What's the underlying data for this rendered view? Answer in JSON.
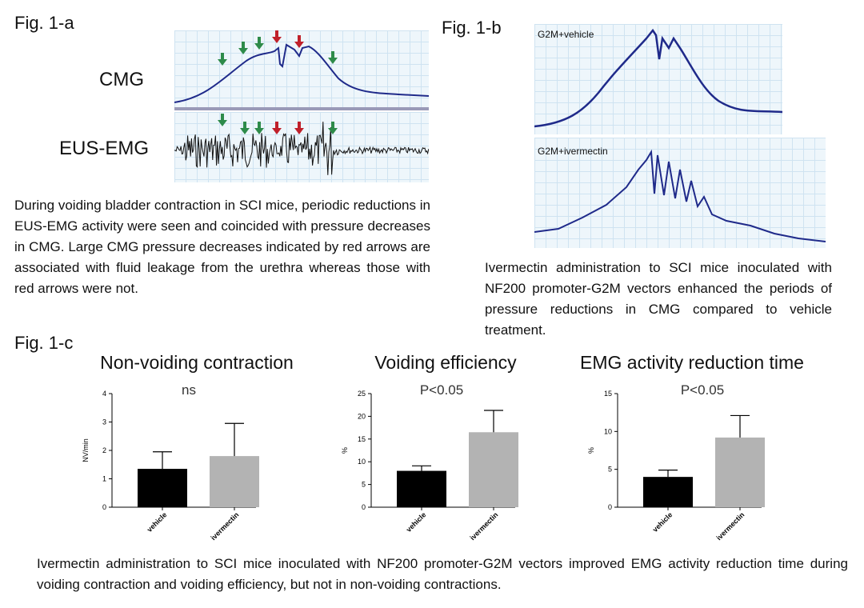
{
  "fig1a": {
    "label": "Fig. 1-a",
    "cmg_label": "CMG",
    "emg_label": "EUS-EMG",
    "caption": "During voiding bladder contraction in SCI mice, periodic reductions in EUS-EMG activity were seen and coincided with pressure decreases in CMG. Large CMG pressure decreases indicated by red arrows are associated with fluid leakage from the urethra whereas those with red arrows were not.",
    "arrow_colors": {
      "leak": "#c0202a",
      "no_leak": "#2e8b4a"
    }
  },
  "fig1b": {
    "label": "Fig. 1-b",
    "top_label": "G2M+vehicle",
    "bottom_label": "G2M+ivermectin",
    "caption": "Ivermectin administration to SCI mice inoculated with NF200 promoter-G2M vectors enhanced the periods of pressure reductions in CMG compared to vehicle treatment.",
    "trace_color": "#1f2a8a"
  },
  "fig1c": {
    "label": "Fig. 1-c",
    "caption": "Ivermectin administration to SCI mice inoculated with NF200 promoter-G2M vectors improved EMG activity reduction time during voiding contraction and voiding efficiency, but not in non-voiding contractions."
  },
  "chart_data": [
    {
      "type": "bar",
      "title": "Non-voiding contraction",
      "stat": "ns",
      "ylabel": "NV/min",
      "categories": [
        "vehicle",
        "ivermectin"
      ],
      "values": [
        1.35,
        1.8
      ],
      "errors": [
        0.6,
        1.15
      ],
      "colors": [
        "#000000",
        "#b3b3b3"
      ],
      "ylim": [
        0,
        4
      ],
      "yticks": [
        0,
        1,
        2,
        3,
        4
      ]
    },
    {
      "type": "bar",
      "title": "Voiding efficiency",
      "stat": "P<0.05",
      "ylabel": "%",
      "categories": [
        "vehicle",
        "ivermectin"
      ],
      "values": [
        8,
        16.5
      ],
      "errors": [
        1.1,
        4.8
      ],
      "colors": [
        "#000000",
        "#b3b3b3"
      ],
      "ylim": [
        0,
        25
      ],
      "yticks": [
        0,
        5,
        10,
        15,
        20,
        25
      ]
    },
    {
      "type": "bar",
      "title": "EMG activity reduction time",
      "stat": "P<0.05",
      "ylabel": "%",
      "categories": [
        "vehicle",
        "ivermectin"
      ],
      "values": [
        4,
        9.2
      ],
      "errors": [
        0.9,
        2.9
      ],
      "colors": [
        "#000000",
        "#b3b3b3"
      ],
      "ylim": [
        0,
        15
      ],
      "yticks": [
        0,
        5,
        10,
        15
      ]
    }
  ]
}
